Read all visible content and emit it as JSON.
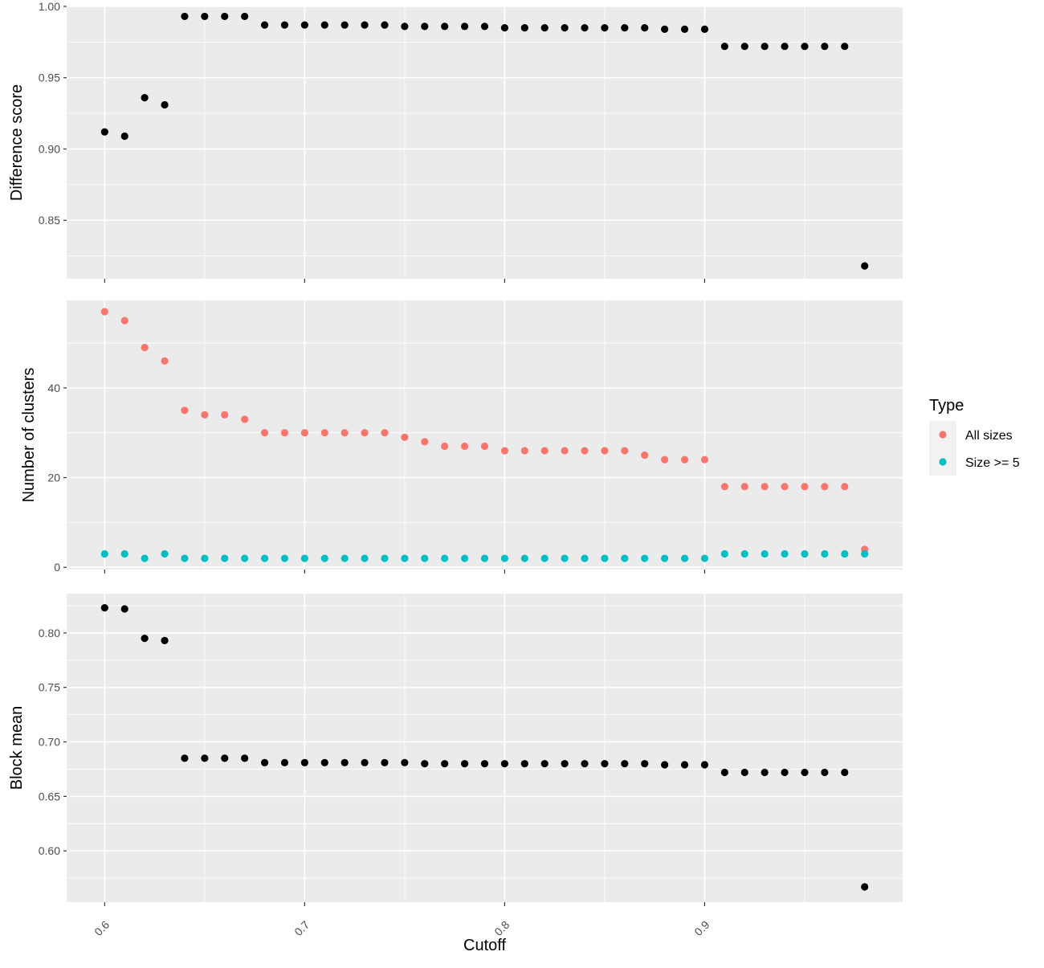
{
  "chart_data": {
    "type": "scatter",
    "xlabel": "Cutoff",
    "x_ticks": [
      0.6,
      0.7,
      0.8,
      0.9
    ],
    "x_tick_labels": [
      "0.6",
      "0.7",
      "0.8",
      "0.9"
    ],
    "xlim": [
      0.581,
      0.999
    ],
    "x": [
      0.6,
      0.61,
      0.62,
      0.63,
      0.64,
      0.65,
      0.66,
      0.67,
      0.68,
      0.69,
      0.7,
      0.71,
      0.72,
      0.73,
      0.74,
      0.75,
      0.76,
      0.77,
      0.78,
      0.79,
      0.8,
      0.81,
      0.82,
      0.83,
      0.84,
      0.85,
      0.86,
      0.87,
      0.88,
      0.89,
      0.9,
      0.91,
      0.92,
      0.93,
      0.94,
      0.95,
      0.96,
      0.97,
      0.98
    ],
    "grid": true,
    "background": "#ebebeb",
    "legend": {
      "title": "Type",
      "position": "right",
      "entries": [
        {
          "label": "All sizes",
          "color": "#f8766d"
        },
        {
          "label": "Size >= 5",
          "color": "#00bfc4"
        }
      ]
    },
    "panels": [
      {
        "ylabel": "Difference score",
        "ylim": [
          0.809,
          1.0
        ],
        "y_ticks": [
          0.85,
          0.9,
          0.95,
          1.0
        ],
        "y_tick_labels": [
          "0.85",
          "0.90",
          "0.95",
          "1.00"
        ],
        "series": [
          {
            "color": "#000000",
            "values": [
              0.912,
              0.909,
              0.936,
              0.931,
              0.993,
              0.993,
              0.993,
              0.993,
              0.987,
              0.987,
              0.987,
              0.987,
              0.987,
              0.987,
              0.987,
              0.986,
              0.986,
              0.986,
              0.986,
              0.986,
              0.985,
              0.985,
              0.985,
              0.985,
              0.985,
              0.985,
              0.985,
              0.985,
              0.984,
              0.984,
              0.984,
              0.972,
              0.972,
              0.972,
              0.972,
              0.972,
              0.972,
              0.972,
              0.818
            ]
          }
        ]
      },
      {
        "ylabel": "Number of clusters",
        "ylim": [
          -0.5,
          59.5
        ],
        "y_ticks": [
          0,
          20,
          40
        ],
        "y_tick_labels": [
          "0",
          "20",
          "40"
        ],
        "series": [
          {
            "name": "All sizes",
            "color": "#f8766d",
            "values": [
              57,
              55,
              49,
              46,
              35,
              34,
              34,
              33,
              30,
              30,
              30,
              30,
              30,
              30,
              30,
              29,
              28,
              27,
              27,
              27,
              26,
              26,
              26,
              26,
              26,
              26,
              26,
              25,
              24,
              24,
              24,
              18,
              18,
              18,
              18,
              18,
              18,
              18,
              4
            ]
          },
          {
            "name": "Size >= 5",
            "color": "#00bfc4",
            "values": [
              3,
              3,
              2,
              3,
              2,
              2,
              2,
              2,
              2,
              2,
              2,
              2,
              2,
              2,
              2,
              2,
              2,
              2,
              2,
              2,
              2,
              2,
              2,
              2,
              2,
              2,
              2,
              2,
              2,
              2,
              2,
              3,
              3,
              3,
              3,
              3,
              3,
              3,
              3
            ]
          }
        ]
      },
      {
        "ylabel": "Block mean",
        "ylim": [
          0.553,
          0.836
        ],
        "y_ticks": [
          0.6,
          0.65,
          0.7,
          0.75,
          0.8
        ],
        "y_tick_labels": [
          "0.60",
          "0.65",
          "0.70",
          "0.75",
          "0.80"
        ],
        "series": [
          {
            "color": "#000000",
            "values": [
              0.823,
              0.822,
              0.795,
              0.793,
              0.685,
              0.685,
              0.685,
              0.685,
              0.681,
              0.681,
              0.681,
              0.681,
              0.681,
              0.681,
              0.681,
              0.681,
              0.68,
              0.68,
              0.68,
              0.68,
              0.68,
              0.68,
              0.68,
              0.68,
              0.68,
              0.68,
              0.68,
              0.68,
              0.679,
              0.679,
              0.679,
              0.672,
              0.672,
              0.672,
              0.672,
              0.672,
              0.672,
              0.672,
              0.567
            ]
          }
        ]
      }
    ]
  }
}
